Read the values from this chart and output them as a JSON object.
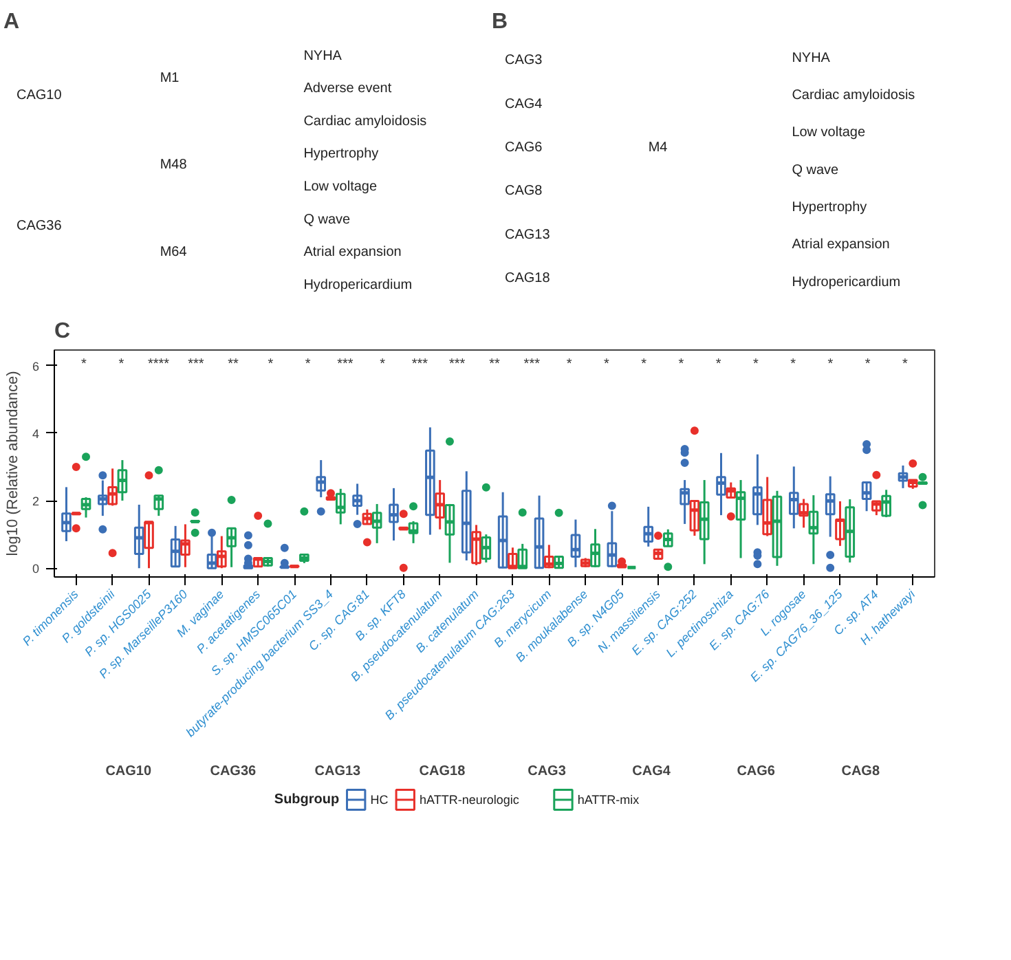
{
  "chart_data": [
    {
      "type": "other",
      "title": "A",
      "categories": [
        "CAG10",
        "CAG36"
      ],
      "y_categories": [
        "M1",
        "M48",
        "M64"
      ],
      "y2_categories": [
        "NYHA",
        "Adverse event",
        "Cardiac amyloidosis",
        "Hypertrophy",
        "Low voltage",
        "Q wave",
        "Atrial expansion",
        "Hydropericardium"
      ]
    },
    {
      "type": "other",
      "title": "B",
      "categories": [
        "CAG3",
        "CAG4",
        "CAG6",
        "CAG8",
        "CAG13",
        "CAG18"
      ],
      "y_categories": [
        "M4"
      ],
      "y2_categories": [
        "NYHA",
        "Cardiac amyloidosis",
        "Low voltage",
        "Q wave",
        "Hypertrophy",
        "Atrial expansion",
        "Hydropericardium"
      ]
    },
    {
      "type": "box",
      "title": "C",
      "ylabel": "log10 (Relative abundance)",
      "legend_title": "Subgroup",
      "legend": "bottom",
      "categories": [
        "P. timonensis",
        "P. goldsteinii",
        "P. sp. HGS0025",
        "P. sp. MarseilleP3160",
        "M. vaginae",
        "P. acetatigenes",
        "S. sp. HMSC065C01",
        "butyrate-producing bacterium SS3_4",
        "C. sp. CAG:81",
        "B. sp. KFT8",
        "B. pseudocatenulatum",
        "B. catenulatum",
        "B. pseudocatenulatum CAG:263",
        "B. merycicum",
        "B. moukalabense",
        "B. sp. N4G05",
        "N. massiliensis",
        "E. sp. CAG:252",
        "L. pectinoschiza",
        "E. sp. CAG:76",
        "L. rogosae",
        "E. sp. CAG76_36_125",
        "C. sp. AT4",
        "H. hathewayi"
      ],
      "ylim": [
        -0.26,
        6.46
      ],
      "yticks": [
        0,
        2,
        4,
        6
      ],
      "series": [
        {
          "name": "HC",
          "color": "#3b6fb6",
          "boxes": [
            {
              "low": 0.8,
              "q1": 1.1,
              "median": 1.35,
              "q3": 1.62,
              "high": 2.4
            },
            {
              "low": 1.55,
              "q1": 1.9,
              "median": 2.05,
              "q3": 2.15,
              "high": 2.6,
              "outliers": [
                2.75,
                1.15
              ]
            },
            {
              "low": 0,
              "q1": 0.42,
              "median": 0.9,
              "q3": 1.2,
              "high": 1.88
            },
            {
              "low": 0.03,
              "q1": 0.05,
              "median": 0.5,
              "q3": 0.85,
              "high": 1.25
            },
            {
              "low": 0,
              "q1": 0,
              "median": 0.15,
              "q3": 0.4,
              "high": 0.95,
              "outliers": [
                1.05
              ]
            },
            {
              "low": 0,
              "q1": 0,
              "median": 0.03,
              "q3": 0.08,
              "high": 0.1,
              "outliers": [
                0.97,
                0.68,
                0.28,
                0.15
              ]
            },
            {
              "low": 0,
              "q1": 0.02,
              "median": 0.03,
              "q3": 0.05,
              "high": 0.05,
              "outliers": [
                0.6,
                0.15
              ]
            },
            {
              "low": 2.1,
              "q1": 2.3,
              "median": 2.55,
              "q3": 2.7,
              "high": 3.2,
              "outliers": [
                1.68
              ]
            },
            {
              "low": 1.58,
              "q1": 1.85,
              "median": 2.0,
              "q3": 2.15,
              "high": 2.5,
              "outliers": [
                1.31
              ]
            },
            {
              "low": 0.82,
              "q1": 1.37,
              "median": 1.58,
              "q3": 1.88,
              "high": 2.37
            },
            {
              "low": 0.99,
              "q1": 1.58,
              "median": 2.69,
              "q3": 3.48,
              "high": 4.17
            },
            {
              "low": 0.23,
              "q1": 0.47,
              "median": 1.33,
              "q3": 2.29,
              "high": 2.87
            },
            {
              "low": 0,
              "q1": 0.02,
              "median": 0.82,
              "q3": 1.53,
              "high": 2.25
            },
            {
              "low": 0,
              "q1": 0.01,
              "median": 0.63,
              "q3": 1.47,
              "high": 2.15
            },
            {
              "low": 0.03,
              "q1": 0.34,
              "median": 0.55,
              "q3": 0.98,
              "high": 1.44
            },
            {
              "low": 0.03,
              "q1": 0.06,
              "median": 0.39,
              "q3": 0.74,
              "high": 1.69,
              "outliers": [
                1.85
              ]
            },
            {
              "low": 0.64,
              "q1": 0.79,
              "median": 1.02,
              "q3": 1.22,
              "high": 1.82
            },
            {
              "low": 1.31,
              "q1": 1.9,
              "median": 2.23,
              "q3": 2.34,
              "high": 2.61,
              "outliers": [
                3.53,
                3.42,
                3.12
              ]
            },
            {
              "low": 1.57,
              "q1": 2.18,
              "median": 2.52,
              "q3": 2.7,
              "high": 3.41
            },
            {
              "low": 1.28,
              "q1": 1.6,
              "median": 2.2,
              "q3": 2.39,
              "high": 3.37,
              "outliers": [
                0.47,
                0.37,
                0.12
              ]
            },
            {
              "low": 1.18,
              "q1": 1.61,
              "median": 2.03,
              "q3": 2.23,
              "high": 3.01
            },
            {
              "low": 0.93,
              "q1": 1.6,
              "median": 1.99,
              "q3": 2.19,
              "high": 2.72,
              "outliers": [
                0.39,
                0.01
              ]
            },
            {
              "low": 1.69,
              "q1": 2.05,
              "median": 2.23,
              "q3": 2.54,
              "high": 2.54,
              "outliers": [
                3.67,
                3.5
              ]
            },
            {
              "low": 2.37,
              "q1": 2.59,
              "median": 2.7,
              "q3": 2.81,
              "high": 3.04
            }
          ]
        },
        {
          "name": "hATTR-neurologic",
          "color": "#e8302a",
          "boxes": [
            {
              "low": 1.6,
              "q1": 1.6,
              "median": 1.62,
              "q3": 1.63,
              "high": 1.63,
              "outliers": [
                3.0,
                1.18
              ]
            },
            {
              "low": 1.85,
              "q1": 1.9,
              "median": 2.2,
              "q3": 2.4,
              "high": 2.95,
              "outliers": [
                0.45
              ]
            },
            {
              "low": 0,
              "q1": 0.6,
              "median": 1.35,
              "q3": 1.37,
              "high": 1.37,
              "outliers": [
                2.75
              ]
            },
            {
              "low": 0.03,
              "q1": 0.4,
              "median": 0.72,
              "q3": 0.82,
              "high": 1.3
            },
            {
              "low": 0,
              "q1": 0.05,
              "median": 0.35,
              "q3": 0.5,
              "high": 0.95
            },
            {
              "low": 0.03,
              "q1": 0.05,
              "median": 0.27,
              "q3": 0.3,
              "high": 0.3,
              "outliers": [
                1.55
              ]
            },
            {
              "low": 0.03,
              "q1": 0.04,
              "median": 0.05,
              "q3": 0.07,
              "high": 0.07
            },
            {
              "low": 2.03,
              "q1": 2.03,
              "median": 2.05,
              "q3": 2.1,
              "high": 2.1,
              "outliers": [
                2.22
              ]
            },
            {
              "low": 1.3,
              "q1": 1.31,
              "median": 1.47,
              "q3": 1.61,
              "high": 1.74,
              "outliers": [
                0.77
              ]
            },
            {
              "low": 1.15,
              "q1": 1.15,
              "median": 1.17,
              "q3": 1.2,
              "high": 1.2,
              "outliers": [
                1.61,
                0.01
              ]
            },
            {
              "low": 1.15,
              "q1": 1.5,
              "median": 1.88,
              "q3": 2.21,
              "high": 2.61
            },
            {
              "low": 0.09,
              "q1": 0.15,
              "median": 0.86,
              "q3": 1.07,
              "high": 1.28
            },
            {
              "low": 0,
              "q1": 0,
              "median": 0.05,
              "q3": 0.42,
              "high": 0.61
            },
            {
              "low": 0,
              "q1": 0.03,
              "median": 0.12,
              "q3": 0.34,
              "high": 0.69
            },
            {
              "low": 0.03,
              "q1": 0.06,
              "median": 0.15,
              "q3": 0.25,
              "high": 0.3
            },
            {
              "low": 0.03,
              "q1": 0.03,
              "median": 0.05,
              "q3": 0.1,
              "high": 0.15,
              "outliers": [
                0.2
              ]
            },
            {
              "low": 0.28,
              "q1": 0.28,
              "median": 0.44,
              "q3": 0.55,
              "high": 0.55,
              "outliers": [
                0.96
              ]
            },
            {
              "low": 0.96,
              "q1": 1.12,
              "median": 1.72,
              "q3": 1.99,
              "high": 1.99,
              "outliers": [
                4.07
              ]
            },
            {
              "low": 2.09,
              "q1": 2.09,
              "median": 2.29,
              "q3": 2.36,
              "high": 2.54,
              "outliers": [
                1.53
              ]
            },
            {
              "low": 0.95,
              "q1": 1.01,
              "median": 1.34,
              "q3": 2.02,
              "high": 2.7
            },
            {
              "low": 1.2,
              "q1": 1.56,
              "median": 1.64,
              "q3": 1.9,
              "high": 2.05
            },
            {
              "low": 0.66,
              "q1": 0.86,
              "median": 1.42,
              "q3": 1.44,
              "high": 1.98
            },
            {
              "low": 1.57,
              "q1": 1.71,
              "median": 1.9,
              "q3": 1.98,
              "high": 1.98,
              "outliers": [
                2.76
              ]
            },
            {
              "low": 2.35,
              "q1": 2.42,
              "median": 2.54,
              "q3": 2.61,
              "high": 2.61,
              "outliers": [
                3.1
              ]
            }
          ]
        },
        {
          "name": "hATTR-mix",
          "color": "#1aa35a",
          "boxes": [
            {
              "low": 1.5,
              "q1": 1.75,
              "median": 1.88,
              "q3": 2.05,
              "high": 2.1,
              "outliers": [
                3.3
              ]
            },
            {
              "low": 2.0,
              "q1": 2.25,
              "median": 2.6,
              "q3": 2.9,
              "high": 3.2
            },
            {
              "low": 1.55,
              "q1": 1.75,
              "median": 2.05,
              "q3": 2.15,
              "high": 2.15,
              "outliers": [
                2.9
              ]
            },
            {
              "low": 1.38,
              "q1": 1.38,
              "median": 1.38,
              "q3": 1.4,
              "high": 1.4,
              "outliers": [
                1.65,
                1.05
              ]
            },
            {
              "low": 0.03,
              "q1": 0.65,
              "median": 0.9,
              "q3": 1.18,
              "high": 1.18,
              "outliers": [
                2.02
              ]
            },
            {
              "low": 0.05,
              "q1": 0.08,
              "median": 0.2,
              "q3": 0.3,
              "high": 0.3,
              "outliers": [
                1.32
              ]
            },
            {
              "low": 0.15,
              "q1": 0.22,
              "median": 0.3,
              "q3": 0.4,
              "high": 0.4,
              "outliers": [
                1.68
              ]
            },
            {
              "low": 1.3,
              "q1": 1.65,
              "median": 1.8,
              "q3": 2.2,
              "high": 2.35
            },
            {
              "low": 0.74,
              "q1": 1.2,
              "median": 1.39,
              "q3": 1.64,
              "high": 1.9
            },
            {
              "low": 0.74,
              "q1": 1.04,
              "median": 1.1,
              "q3": 1.33,
              "high": 1.39,
              "outliers": [
                1.83
              ]
            },
            {
              "low": 0.16,
              "q1": 1.0,
              "median": 1.37,
              "q3": 1.87,
              "high": 1.9,
              "outliers": [
                3.75
              ]
            },
            {
              "low": 0.17,
              "q1": 0.28,
              "median": 0.61,
              "q3": 0.91,
              "high": 1.0,
              "outliers": [
                2.39
              ]
            },
            {
              "low": 0,
              "q1": 0,
              "median": 0.05,
              "q3": 0.55,
              "high": 0.72,
              "outliers": [
                1.65
              ]
            },
            {
              "low": 0,
              "q1": 0.01,
              "median": 0.14,
              "q3": 0.34,
              "high": 0.34,
              "outliers": [
                1.64
              ]
            },
            {
              "low": 0.03,
              "q1": 0.06,
              "median": 0.44,
              "q3": 0.7,
              "high": 1.16
            },
            {
              "low": 0.02,
              "q1": 0.02,
              "median": 0.02,
              "q3": 0.02,
              "high": 0.02
            },
            {
              "low": 0.65,
              "q1": 0.65,
              "median": 0.85,
              "q3": 1.03,
              "high": 1.15,
              "outliers": [
                0.04
              ]
            },
            {
              "low": 0.12,
              "q1": 0.86,
              "median": 1.45,
              "q3": 1.95,
              "high": 2.61
            },
            {
              "low": 0.3,
              "q1": 1.44,
              "median": 2.07,
              "q3": 2.25,
              "high": 2.61
            },
            {
              "low": 0.07,
              "q1": 0.33,
              "median": 1.39,
              "q3": 2.12,
              "high": 2.29
            },
            {
              "low": 0.12,
              "q1": 1.03,
              "median": 1.2,
              "q3": 1.67,
              "high": 2.16
            },
            {
              "low": 0.17,
              "q1": 0.34,
              "median": 1.09,
              "q3": 1.8,
              "high": 2.04
            },
            {
              "low": 1.51,
              "q1": 1.55,
              "median": 1.96,
              "q3": 2.14,
              "high": 2.32
            },
            {
              "low": 2.5,
              "q1": 2.5,
              "median": 2.52,
              "q3": 2.54,
              "high": 2.54,
              "outliers": [
                2.7,
                1.87
              ]
            }
          ]
        }
      ],
      "annotations": [
        "*",
        "*",
        "****",
        "***",
        "**",
        "*",
        "*",
        "***",
        "*",
        "***",
        "***",
        "**",
        "***",
        "*",
        "*",
        "*",
        "*",
        "*",
        "*",
        "*",
        "*",
        "*",
        "*",
        "CAG10",
        "CAG36",
        "CAG13",
        "CAG18",
        "CAG3",
        "CAG4",
        "CAG6",
        "CAG8"
      ]
    }
  ]
}
